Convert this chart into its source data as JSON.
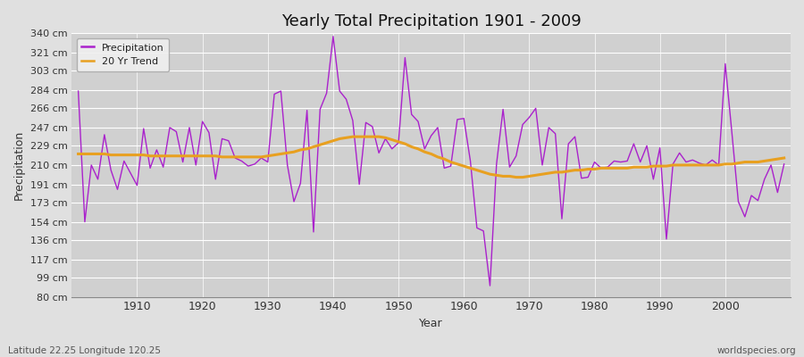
{
  "title": "Yearly Total Precipitation 1901 - 2009",
  "xlabel": "Year",
  "ylabel": "Precipitation",
  "footnote_left": "Latitude 22.25 Longitude 120.25",
  "footnote_right": "worldspecies.org",
  "legend_labels": [
    "Precipitation",
    "20 Yr Trend"
  ],
  "precip_color": "#aa22cc",
  "trend_color": "#e8a020",
  "bg_color": "#e0e0e0",
  "plot_bg_color": "#d0d0d0",
  "grid_color": "#ffffff",
  "years": [
    1901,
    1902,
    1903,
    1904,
    1905,
    1906,
    1907,
    1908,
    1909,
    1910,
    1911,
    1912,
    1913,
    1914,
    1915,
    1916,
    1917,
    1918,
    1919,
    1920,
    1921,
    1922,
    1923,
    1924,
    1925,
    1926,
    1927,
    1928,
    1929,
    1930,
    1931,
    1932,
    1933,
    1934,
    1935,
    1936,
    1937,
    1938,
    1939,
    1940,
    1941,
    1942,
    1943,
    1944,
    1945,
    1946,
    1947,
    1948,
    1949,
    1950,
    1951,
    1952,
    1953,
    1954,
    1955,
    1956,
    1957,
    1958,
    1959,
    1960,
    1961,
    1962,
    1963,
    1964,
    1965,
    1966,
    1967,
    1968,
    1969,
    1970,
    1971,
    1972,
    1973,
    1974,
    1975,
    1976,
    1977,
    1978,
    1979,
    1980,
    1981,
    1982,
    1983,
    1984,
    1985,
    1986,
    1987,
    1988,
    1989,
    1990,
    1991,
    1992,
    1993,
    1994,
    1995,
    1996,
    1997,
    1998,
    1999,
    2000,
    2001,
    2002,
    2003,
    2004,
    2005,
    2006,
    2007,
    2008,
    2009
  ],
  "precipitation": [
    283,
    154,
    210,
    196,
    240,
    205,
    186,
    214,
    202,
    190,
    246,
    207,
    225,
    208,
    247,
    243,
    213,
    247,
    210,
    253,
    242,
    196,
    236,
    234,
    217,
    214,
    209,
    211,
    217,
    213,
    280,
    283,
    210,
    174,
    192,
    264,
    144,
    265,
    281,
    337,
    283,
    275,
    254,
    191,
    252,
    248,
    222,
    236,
    226,
    232,
    316,
    260,
    253,
    226,
    239,
    247,
    207,
    209,
    255,
    256,
    214,
    148,
    145,
    91,
    211,
    265,
    208,
    219,
    250,
    257,
    266,
    210,
    247,
    241,
    157,
    231,
    238,
    197,
    198,
    213,
    207,
    208,
    214,
    213,
    214,
    231,
    213,
    229,
    196,
    227,
    137,
    211,
    222,
    213,
    215,
    212,
    210,
    215,
    210,
    310,
    243,
    174,
    159,
    180,
    175,
    196,
    210,
    183,
    211
  ],
  "trend": [
    221,
    221,
    221,
    221,
    221,
    220,
    220,
    220,
    220,
    220,
    220,
    219,
    219,
    219,
    219,
    219,
    219,
    219,
    219,
    219,
    219,
    219,
    218,
    218,
    218,
    218,
    218,
    218,
    218,
    219,
    220,
    221,
    222,
    223,
    225,
    226,
    228,
    230,
    232,
    234,
    236,
    237,
    238,
    238,
    238,
    238,
    238,
    237,
    235,
    233,
    231,
    228,
    226,
    223,
    221,
    218,
    216,
    213,
    211,
    209,
    207,
    205,
    203,
    201,
    200,
    199,
    199,
    198,
    198,
    199,
    200,
    201,
    202,
    203,
    203,
    204,
    205,
    205,
    206,
    206,
    207,
    207,
    207,
    207,
    207,
    208,
    208,
    208,
    209,
    209,
    209,
    210,
    210,
    210,
    210,
    210,
    210,
    210,
    210,
    211,
    211,
    212,
    213,
    213,
    213,
    214,
    215,
    216,
    217
  ],
  "ylim": [
    80,
    340
  ],
  "yticks": [
    80,
    99,
    117,
    136,
    154,
    173,
    191,
    210,
    229,
    247,
    266,
    284,
    303,
    321,
    340
  ],
  "xlim": [
    1900,
    2010
  ],
  "xticks": [
    1910,
    1920,
    1930,
    1940,
    1950,
    1960,
    1970,
    1980,
    1990,
    2000
  ]
}
